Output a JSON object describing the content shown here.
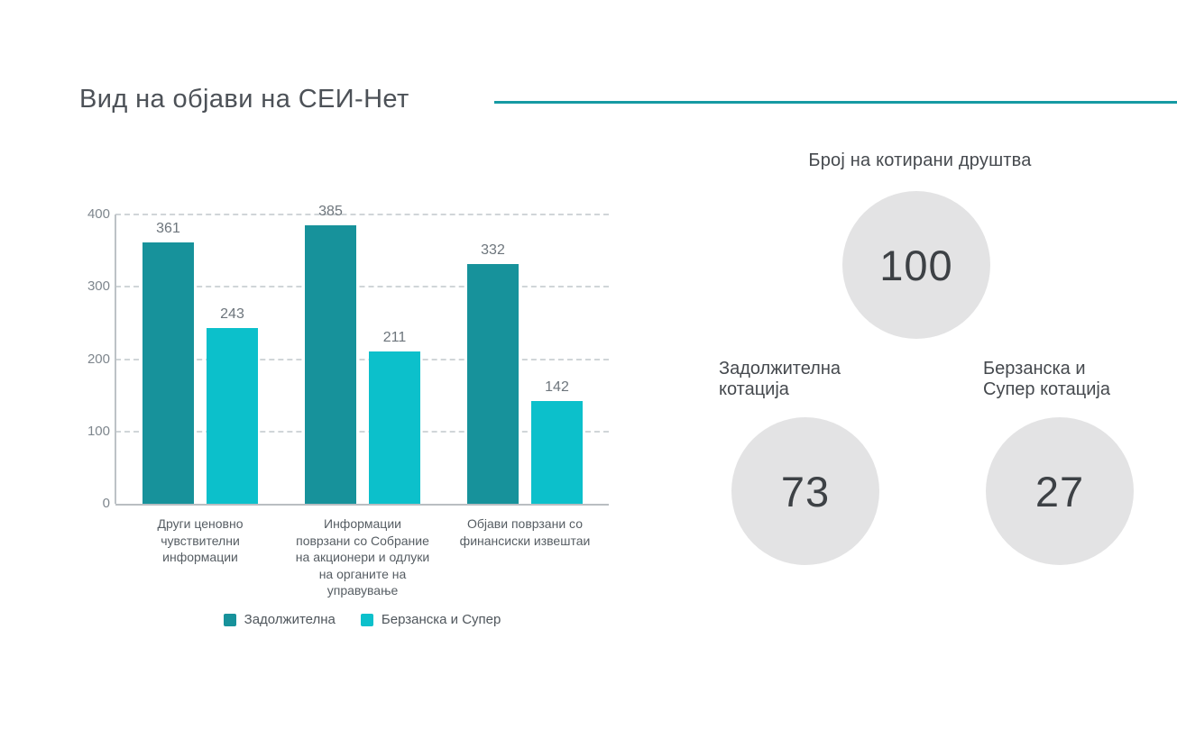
{
  "title": "Вид на објави на СЕИ-Нет",
  "accent_color": "#159aa3",
  "chart_data": {
    "type": "bar",
    "title": "Вид на објави на СЕИ-Нет",
    "categories": [
      "Други ценовно чувствителни информации",
      "Информации поврзани со Собрание на акционери и одлуки на органите на управување",
      "Објави поврзани со финансиски извештаи"
    ],
    "category_label_lines": [
      [
        "Други ценовно",
        "чувствителни",
        "информации"
      ],
      [
        "Информации",
        "поврзани со Собрание",
        "на акционери и одлуки",
        "на органите на",
        "управување"
      ],
      [
        "Објави поврзани со",
        "финансиски извештаи"
      ]
    ],
    "series": [
      {
        "name": "Задолжителна",
        "color": "#17929b",
        "values": [
          361,
          385,
          332
        ]
      },
      {
        "name": "Берзанска и Супер",
        "color": "#0cc0cb",
        "values": [
          243,
          211,
          142
        ]
      }
    ],
    "xlabel": "",
    "ylabel": "",
    "ylim": [
      0,
      400
    ],
    "yticks": [
      0,
      100,
      200,
      300,
      400
    ],
    "grid": "horizontal-dashed",
    "legend_position": "bottom",
    "value_labels": "above-bars"
  },
  "kpi": {
    "heading": "Број на котирани друштва",
    "circle_color": "#e3e3e4",
    "total": {
      "value": "100"
    },
    "items": [
      {
        "label": "Задолжителна котација",
        "value": "73"
      },
      {
        "label": "Берзанска и Супер котација",
        "value": "27"
      }
    ]
  }
}
